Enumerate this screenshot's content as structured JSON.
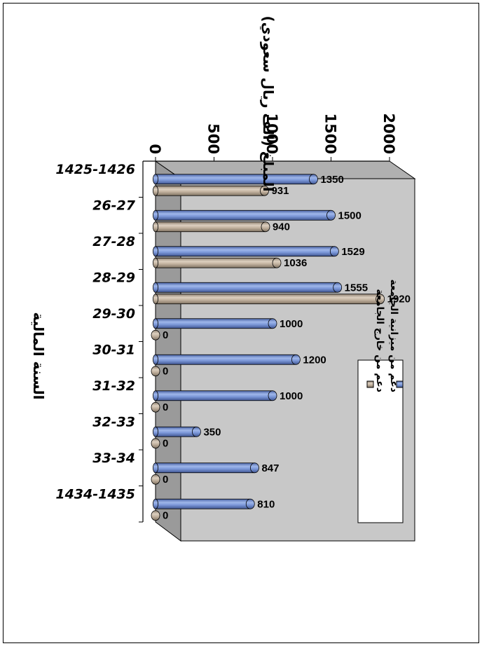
{
  "chart_data": {
    "type": "bar",
    "orientation": "horizontal",
    "categories": [
      "1425-1426",
      "26-27",
      "27-28",
      "28-29",
      "29-30",
      "30-31",
      "31-32",
      "32-33",
      "33-34",
      "1434-1435"
    ],
    "series": [
      {
        "name": "دعم من ميزانية الجامعة",
        "values": [
          1350,
          1500,
          1529,
          1555,
          1000,
          1200,
          1000,
          350,
          847,
          810
        ],
        "color": "#6f8fd3"
      },
      {
        "name": "دعم من خارج الجامعة",
        "values": [
          931,
          940,
          1036,
          1920,
          0,
          0,
          0,
          0,
          0,
          0
        ],
        "color": "#c9b9a6"
      }
    ],
    "value_labels": {
      "primary": [
        "1350",
        "1500",
        "1529",
        "1555",
        "1000",
        "1200",
        "1000",
        "350",
        "847",
        "810"
      ],
      "secondary": [
        "931",
        "940",
        "1036",
        "1920",
        "0",
        "0",
        "0",
        "0",
        "0",
        "0"
      ]
    },
    "ylabel": "المبلغ (ألف ريال سعودي)",
    "xlabel": "السنة المالية",
    "ylim": [
      0,
      2000
    ],
    "ticks": [
      "0",
      "500",
      "1000",
      "1500",
      "2000"
    ],
    "legend_position": "bottom-right",
    "grid": false,
    "rotated": true,
    "style": "3d-cylinder"
  }
}
